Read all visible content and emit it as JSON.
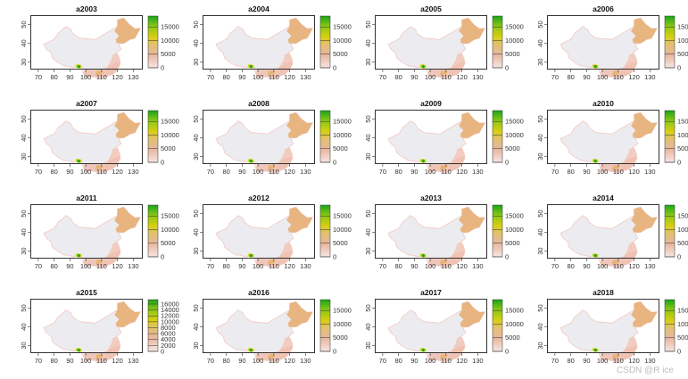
{
  "chart_data": {
    "type": "heatmap",
    "panels": [
      "a2003",
      "a2004",
      "a2005",
      "a2006",
      "a2007",
      "a2008",
      "a2009",
      "a2010",
      "a2011",
      "a2012",
      "a2013",
      "a2014",
      "a2015",
      "a2016",
      "a2017",
      "a2018"
    ],
    "x_ticks": [
      "70",
      "80",
      "90",
      "100",
      "110",
      "120",
      "130"
    ],
    "y_ticks": [
      "30",
      "40",
      "50"
    ],
    "xlim": [
      65,
      136
    ],
    "ylim": [
      26,
      55
    ],
    "legend_default": {
      "ticks": [
        "0",
        "5000",
        "10000",
        "15000"
      ],
      "max": 19000
    },
    "legend_fine": {
      "ticks": [
        "0",
        "2000",
        "4000",
        "6000",
        "8000",
        "10000",
        "12000",
        "14000",
        "16000"
      ],
      "max": 17500
    },
    "legend_fine_panel": "a2015",
    "legend_placement": "right",
    "colors": {
      "low": "#f3d7d4",
      "mid": "#e0a070",
      "high_yellow": "#d7cf10",
      "top_green": "#1aa61a",
      "land_base": "#ececf0",
      "northeast": "#e8b27a"
    }
  },
  "watermark": "CSDN @R ice"
}
